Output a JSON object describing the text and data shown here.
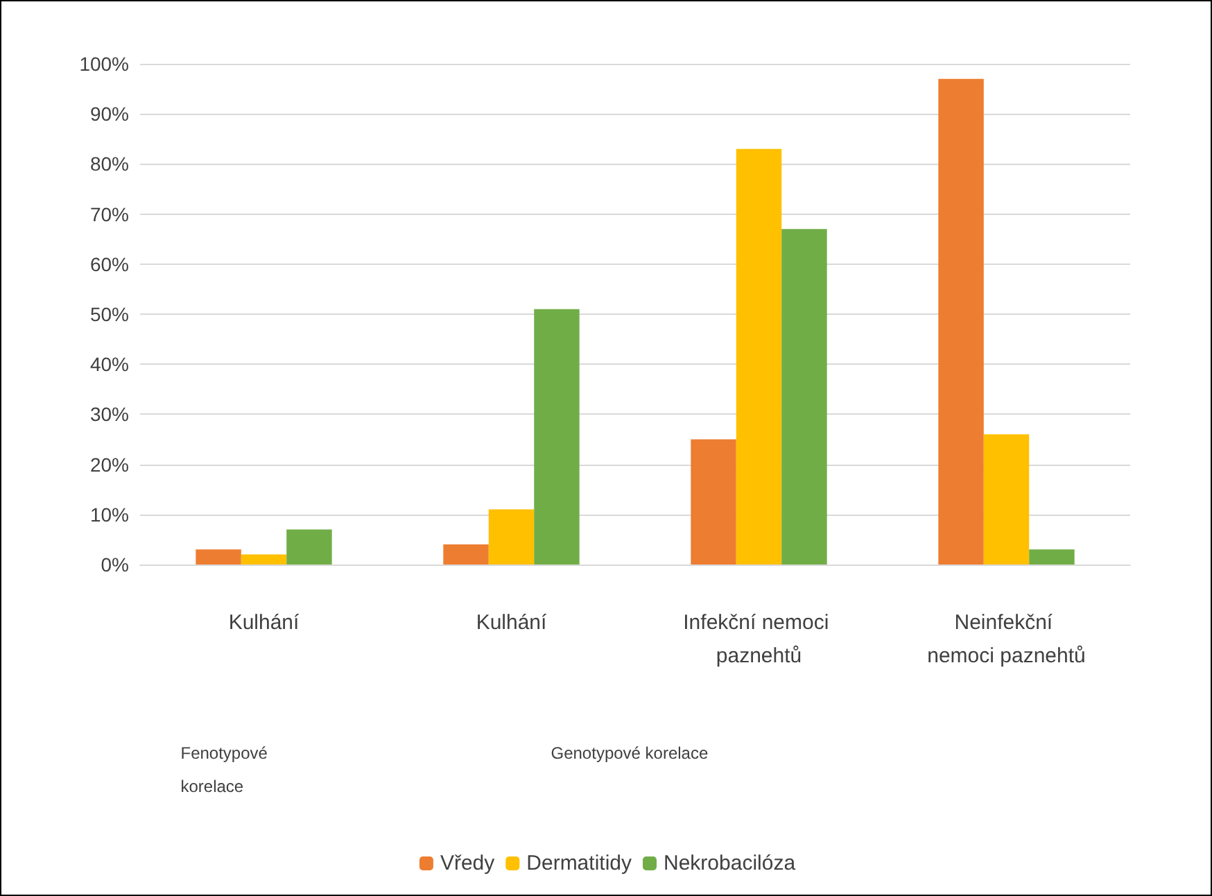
{
  "chart_data": {
    "type": "bar",
    "categories": [
      "Kulhání",
      "Kulhání",
      "Infekční nemoci paznehtů",
      "Neinfekční nemoci paznehtů"
    ],
    "series": [
      {
        "name": "Vředy",
        "color": "#ed7d31",
        "values": [
          3,
          4,
          25,
          97
        ]
      },
      {
        "name": "Dermatitidy",
        "color": "#ffc000",
        "values": [
          2,
          11,
          83,
          26
        ]
      },
      {
        "name": "Nekrobacilóza",
        "color": "#70ad47",
        "values": [
          7,
          51,
          67,
          3
        ]
      }
    ],
    "ylim": [
      0,
      100
    ],
    "yticks": [
      {
        "value": 0,
        "label": "0%"
      },
      {
        "value": 10,
        "label": "10%"
      },
      {
        "value": 20,
        "label": "20%"
      },
      {
        "value": 30,
        "label": "30%"
      },
      {
        "value": 40,
        "label": "40%"
      },
      {
        "value": 50,
        "label": "50%"
      },
      {
        "value": 60,
        "label": "60%"
      },
      {
        "value": 70,
        "label": "70%"
      },
      {
        "value": 80,
        "label": "80%"
      },
      {
        "value": 90,
        "label": "90%"
      },
      {
        "value": 100,
        "label": "100%"
      }
    ],
    "annotations": [
      "Fenotypové korelace",
      "Genotypové korelace"
    ],
    "grid": "y",
    "legend": "bottom"
  }
}
